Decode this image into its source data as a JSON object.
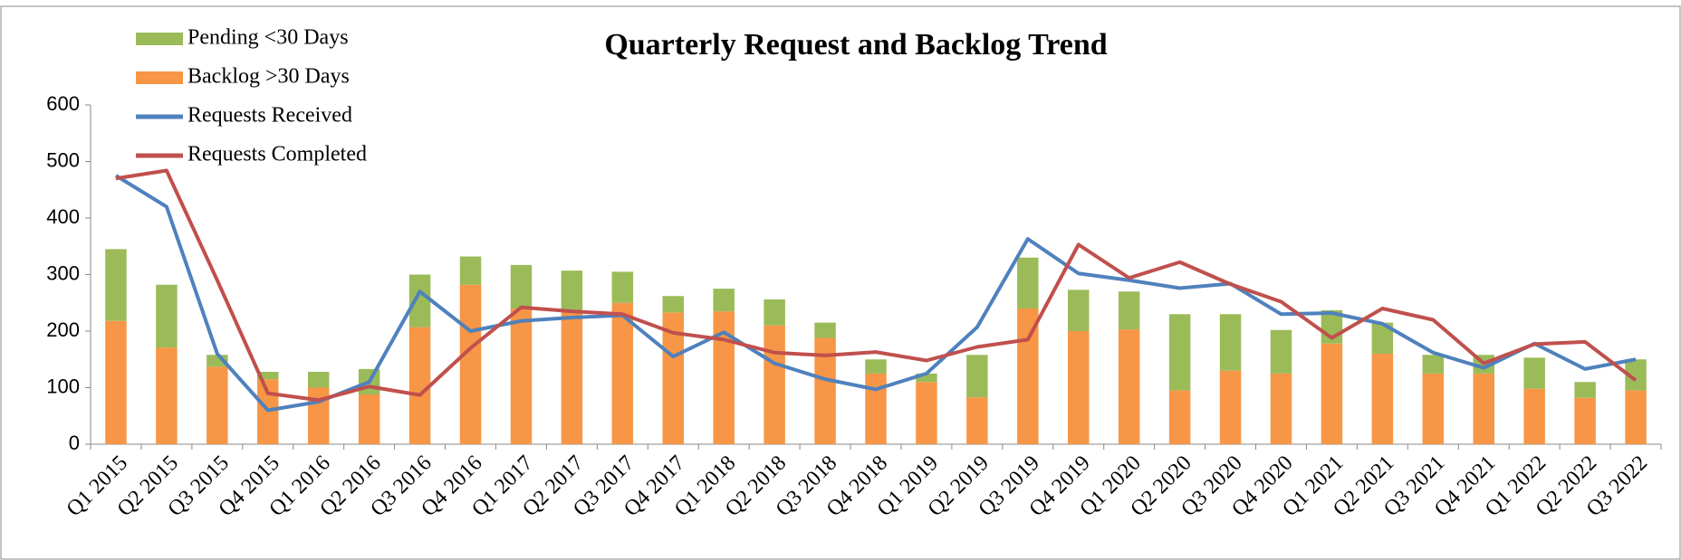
{
  "chart_data": {
    "type": "bar-line",
    "title": "Quarterly Request and Backlog Trend",
    "categories": [
      "Q1 2015",
      "Q2 2015",
      "Q3 2015",
      "Q4 2015",
      "Q1 2016",
      "Q2 2016",
      "Q3 2016",
      "Q4 2016",
      "Q1 2017",
      "Q2 2017",
      "Q3 2017",
      "Q4 2017",
      "Q1 2018",
      "Q2 2018",
      "Q3 2018",
      "Q4 2018",
      "Q1 2019",
      "Q2 2019",
      "Q3 2019",
      "Q4 2019",
      "Q1 2020",
      "Q2 2020",
      "Q3 2020",
      "Q4 2020",
      "Q1 2021",
      "Q2 2021",
      "Q3 2021",
      "Q4 2021",
      "Q1 2022",
      "Q2 2022",
      "Q3 2022"
    ],
    "series": [
      {
        "name": "Pending <30 Days",
        "kind": "bar",
        "color": "#9bbb59",
        "values": [
          127,
          111,
          21,
          13,
          28,
          45,
          93,
          50,
          77,
          72,
          55,
          29,
          40,
          46,
          27,
          25,
          15,
          75,
          90,
          73,
          67,
          135,
          100,
          77,
          59,
          55,
          33,
          33,
          55,
          28,
          55
        ]
      },
      {
        "name": "Backlog >30 Days",
        "kind": "bar",
        "color": "#f79646",
        "values": [
          218,
          171,
          137,
          115,
          100,
          88,
          207,
          282,
          240,
          235,
          250,
          233,
          235,
          210,
          188,
          125,
          110,
          83,
          240,
          200,
          203,
          95,
          130,
          125,
          178,
          160,
          125,
          125,
          98,
          82,
          95
        ]
      },
      {
        "name": "Requests Received",
        "kind": "line",
        "color": "#4f81bd",
        "values": [
          475,
          420,
          160,
          60,
          75,
          110,
          270,
          200,
          218,
          224,
          228,
          155,
          198,
          143,
          115,
          97,
          125,
          207,
          363,
          302,
          290,
          276,
          284,
          230,
          232,
          213,
          162,
          135,
          178,
          133,
          150
        ]
      },
      {
        "name": "Requests Completed",
        "kind": "line",
        "color": "#c0504d",
        "values": [
          470,
          484,
          290,
          90,
          78,
          102,
          87,
          170,
          242,
          235,
          230,
          197,
          185,
          162,
          157,
          163,
          148,
          172,
          185,
          353,
          294,
          322,
          283,
          252,
          188,
          240,
          220,
          143,
          177,
          181,
          113
        ]
      }
    ],
    "ylim": [
      0,
      600
    ],
    "yticks": [
      0,
      100,
      200,
      300,
      400,
      500,
      600
    ],
    "legend": "top-left"
  }
}
